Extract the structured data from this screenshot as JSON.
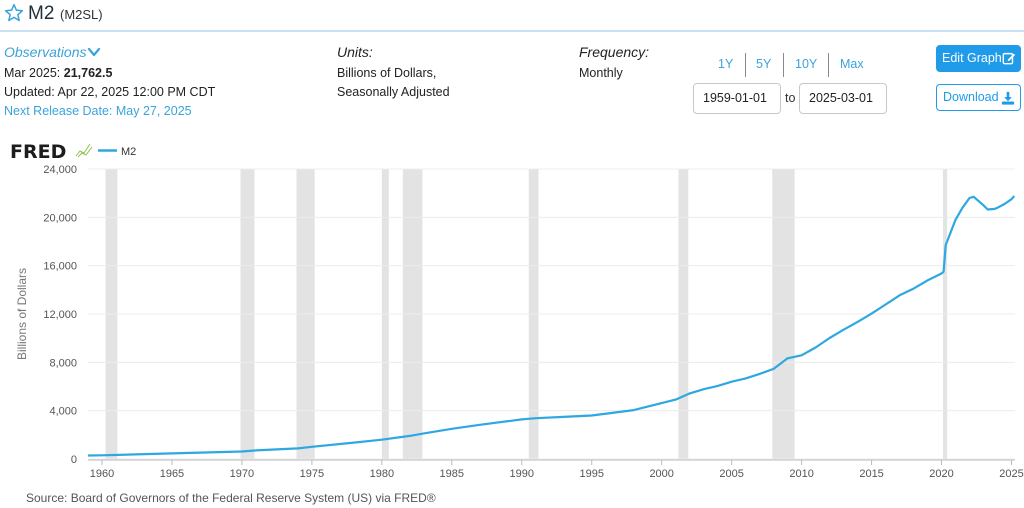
{
  "header": {
    "title": "M2",
    "code": "(M2SL)"
  },
  "info": {
    "observations_label": "Observations",
    "obs_prefix": "Mar 2025:",
    "obs_value": "21,762.5",
    "updated": "Updated: Apr 22, 2025 12:00 PM CDT",
    "next_release": "Next Release Date: May 27, 2025",
    "units_label": "Units:",
    "units_line1": "Billions of Dollars,",
    "units_line2": "Seasonally Adjusted",
    "frequency_label": "Frequency:",
    "frequency_value": "Monthly"
  },
  "controls": {
    "ranges": [
      "1Y",
      "5Y",
      "10Y",
      "Max"
    ],
    "start_date": "1959-01-01",
    "to_label": "to",
    "end_date": "2025-03-01",
    "edit_label": "Edit Graph",
    "download_label": "Download"
  },
  "logo_text": "FRED",
  "source": "Source: Board of Governors of the Federal Reserve System (US) via FRED®",
  "colors": {
    "line": "#2fa7e0",
    "accent": "#1f9bea",
    "recession": "#e3e3e3"
  },
  "chart_data": {
    "type": "line",
    "legend": "M2",
    "ylabel": "Billions of Dollars",
    "xlim": [
      1959.0,
      2025.25
    ],
    "ylim": [
      0,
      24000
    ],
    "yticks": [
      0,
      4000,
      8000,
      12000,
      16000,
      20000,
      24000
    ],
    "ytick_labels": [
      "0",
      "4,000",
      "8,000",
      "12,000",
      "16,000",
      "20,000",
      "24,000"
    ],
    "xticks": [
      1960,
      1965,
      1970,
      1975,
      1980,
      1985,
      1990,
      1995,
      2000,
      2005,
      2010,
      2015,
      2020,
      2025
    ],
    "xtick_labels": [
      "1960",
      "1965",
      "1970",
      "1975",
      "1980",
      "1985",
      "1990",
      "1995",
      "2000",
      "2005",
      "2010",
      "2015",
      "2020",
      "2025"
    ],
    "recessions": [
      [
        1960.25,
        1961.1
      ],
      [
        1969.9,
        1970.9
      ],
      [
        1973.9,
        1975.2
      ],
      [
        1980.0,
        1980.5
      ],
      [
        1981.5,
        1982.9
      ],
      [
        1990.5,
        1991.2
      ],
      [
        2001.2,
        2001.9
      ],
      [
        2007.9,
        2009.5
      ],
      [
        2020.1,
        2020.4
      ]
    ],
    "series": [
      {
        "name": "M2",
        "x": [
          1959.0,
          1960.0,
          1965.0,
          1970.0,
          1971.0,
          1974.0,
          1975.0,
          1978.0,
          1980.0,
          1982.0,
          1983.0,
          1985.0,
          1987.0,
          1990.0,
          1991.0,
          1993.0,
          1995.0,
          1998.0,
          2000.0,
          2001.0,
          2002.0,
          2003.0,
          2004.0,
          2005.0,
          2006.0,
          2007.0,
          2008.0,
          2009.0,
          2010.0,
          2011.0,
          2012.0,
          2013.0,
          2014.0,
          2015.0,
          2016.0,
          2017.0,
          2018.0,
          2019.0,
          2020.0,
          2020.15,
          2020.3,
          2020.5,
          2021.0,
          2021.5,
          2022.0,
          2022.3,
          2022.6,
          2023.0,
          2023.3,
          2023.8,
          2024.0,
          2024.5,
          2025.0,
          2025.2
        ],
        "y": [
          290,
          310,
          460,
          620,
          710,
          880,
          1010,
          1360,
          1600,
          1910,
          2120,
          2500,
          2830,
          3280,
          3380,
          3480,
          3600,
          4050,
          4630,
          4920,
          5430,
          5780,
          6050,
          6400,
          6670,
          7040,
          7460,
          8330,
          8580,
          9230,
          10010,
          10700,
          11350,
          12030,
          12790,
          13550,
          14100,
          14780,
          15350,
          15500,
          17700,
          18300,
          19800,
          20800,
          21600,
          21700,
          21400,
          21000,
          20650,
          20700,
          20800,
          21100,
          21500,
          21762.5
        ]
      }
    ]
  }
}
